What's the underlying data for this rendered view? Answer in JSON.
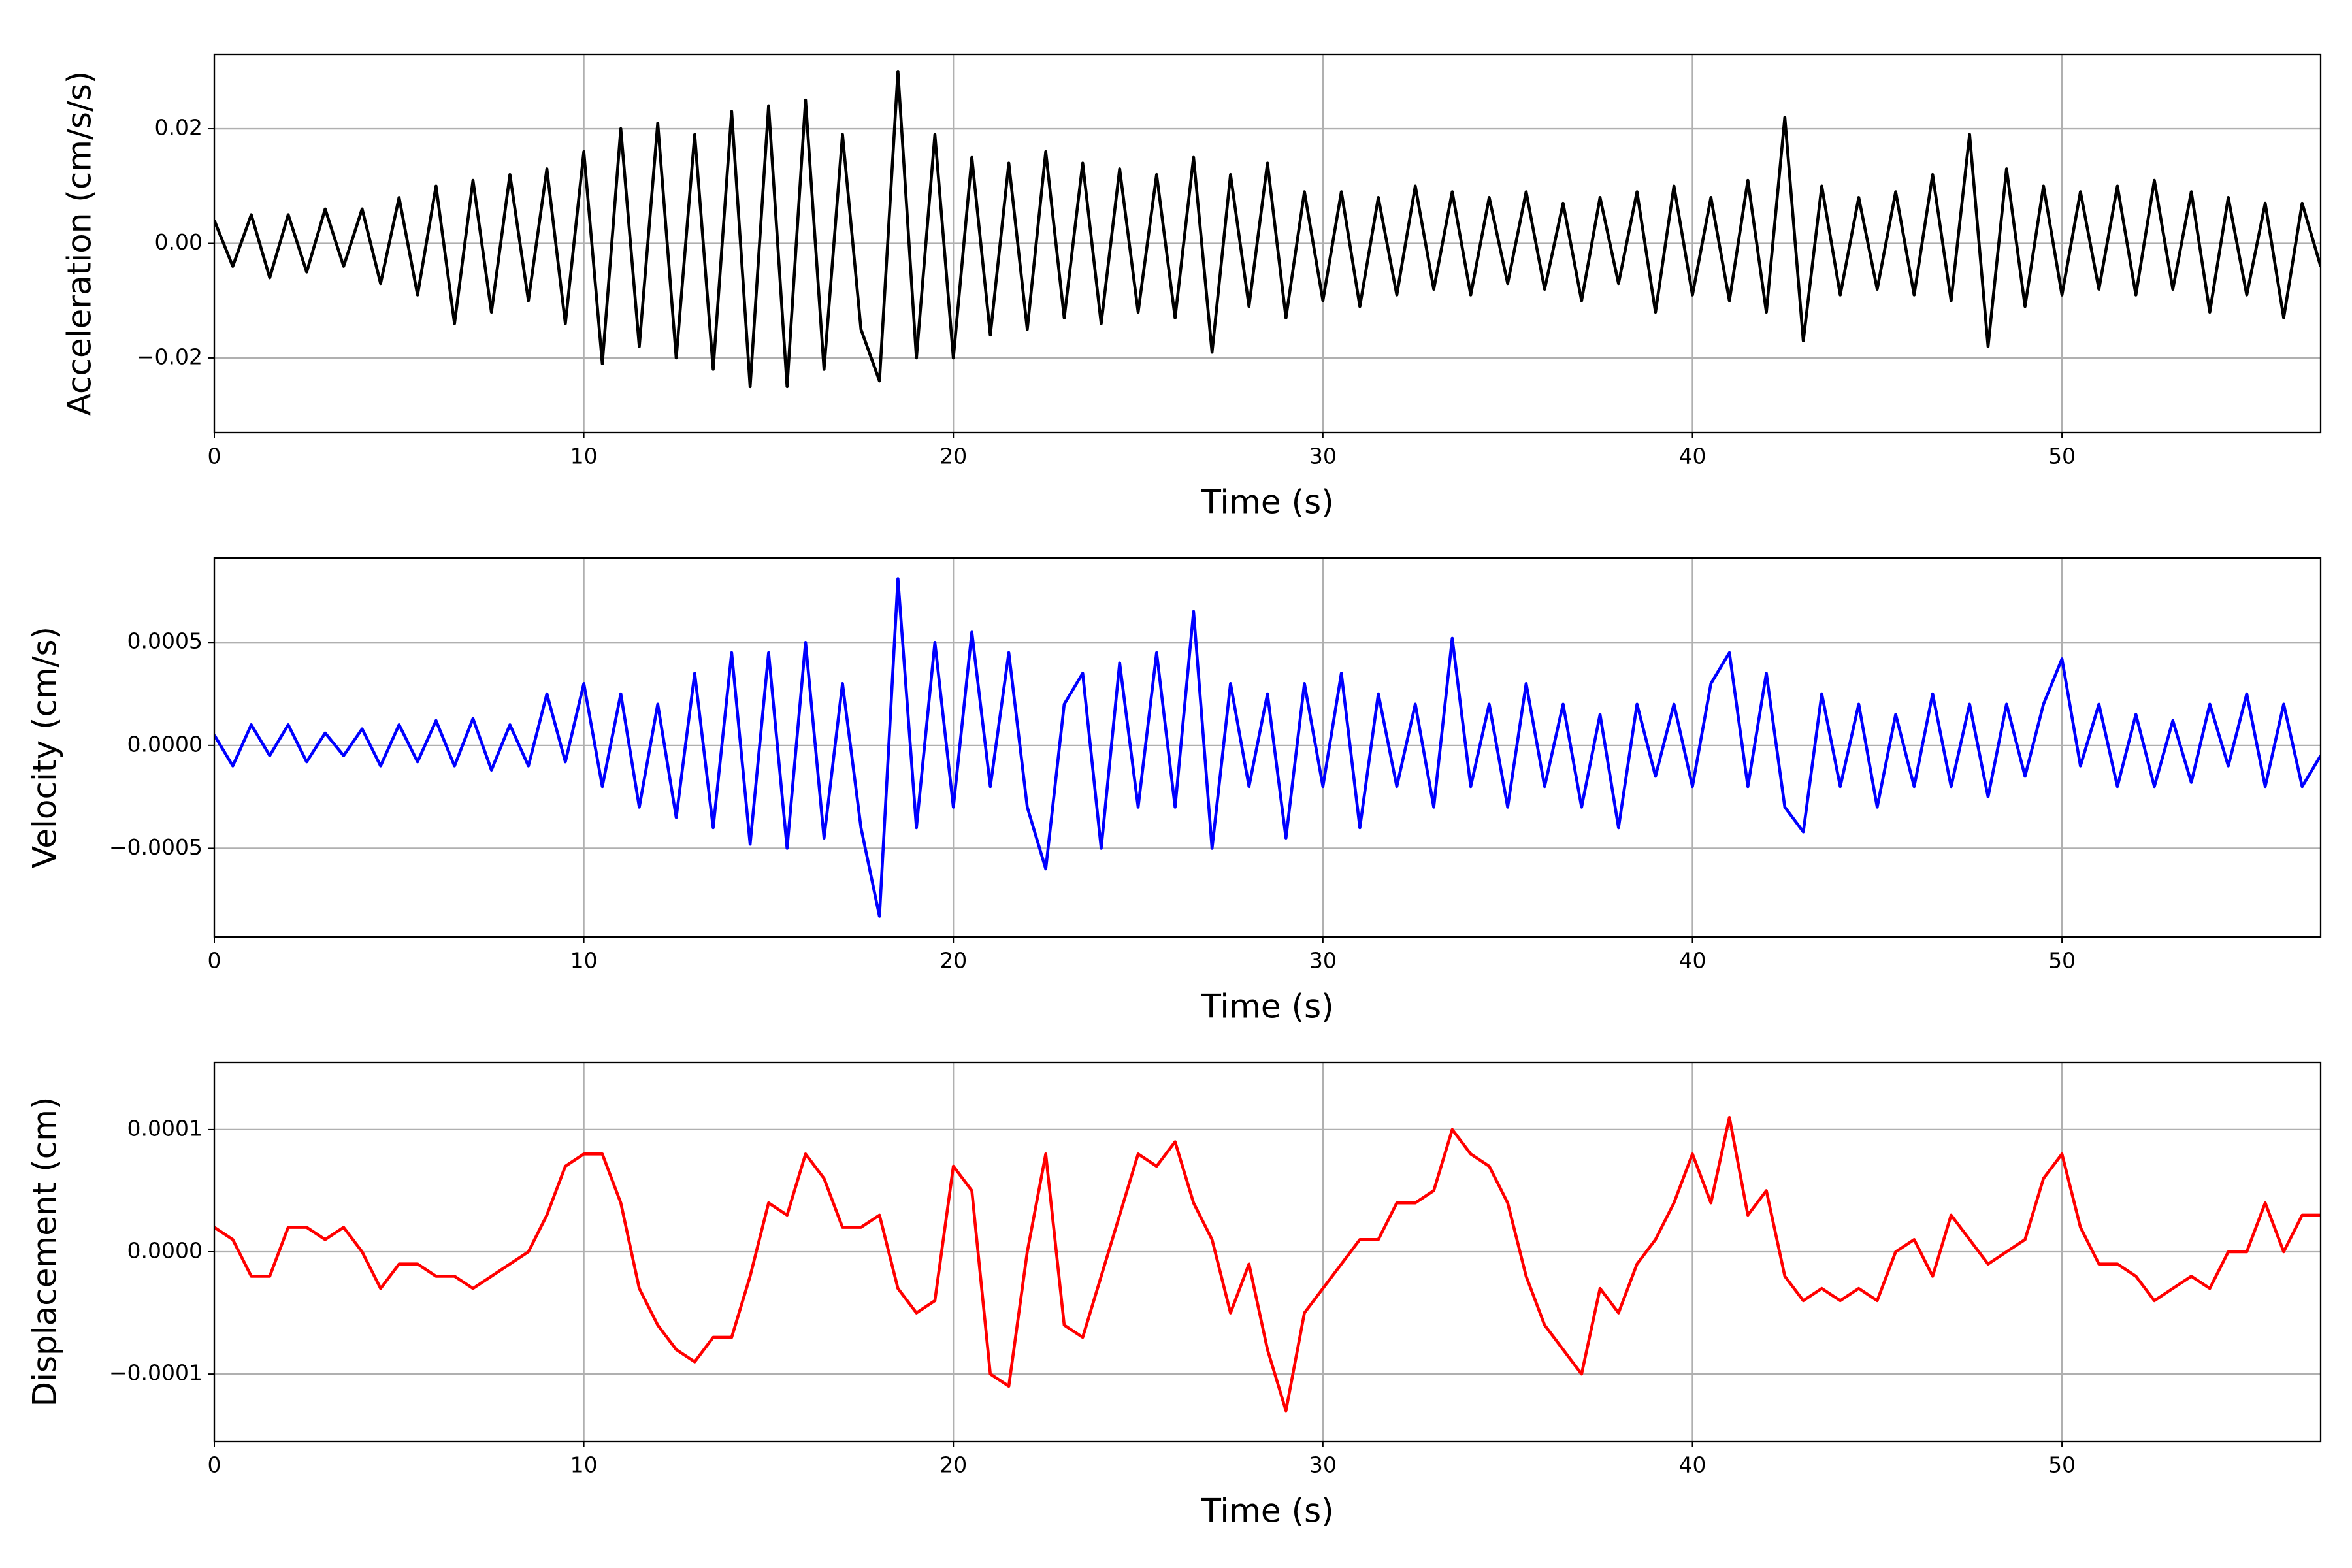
{
  "chart_data": [
    {
      "type": "line",
      "xlabel": "Time (s)",
      "ylabel": "Acceleration (cm/s/s)",
      "color": "#000000",
      "grid": true,
      "xlim": [
        0,
        57
      ],
      "xticks": [
        0,
        10,
        20,
        30,
        40,
        50
      ],
      "ylim": [
        -0.033,
        0.033
      ],
      "yticks": [
        {
          "value": -0.02,
          "label": "−0.02"
        },
        {
          "value": 0,
          "label": "0.00"
        },
        0.02
      ],
      "x": [
        0,
        0.5,
        1,
        1.5,
        2,
        2.5,
        3,
        3.5,
        4,
        4.5,
        5,
        5.5,
        6,
        6.5,
        7,
        7.5,
        8,
        8.5,
        9,
        9.5,
        10,
        10.5,
        11,
        11.5,
        12,
        12.5,
        13,
        13.5,
        14,
        14.5,
        15,
        15.5,
        16,
        16.5,
        17,
        17.5,
        18,
        18.5,
        19,
        19.5,
        20,
        20.5,
        21,
        21.5,
        22,
        22.5,
        23,
        23.5,
        24,
        24.5,
        25,
        25.5,
        26,
        26.5,
        27,
        27.5,
        28,
        28.5,
        29,
        29.5,
        30,
        30.5,
        31,
        31.5,
        32,
        32.5,
        33,
        33.5,
        34,
        34.5,
        35,
        35.5,
        36,
        36.5,
        37,
        37.5,
        38,
        38.5,
        39,
        39.5,
        40,
        40.5,
        41,
        41.5,
        42,
        42.5,
        43,
        43.5,
        44,
        44.5,
        45,
        45.5,
        46,
        46.5,
        47,
        47.5,
        48,
        48.5,
        49,
        49.5,
        50,
        50.5,
        51,
        51.5,
        52,
        52.5,
        53,
        53.5,
        54,
        54.5,
        55,
        55.5,
        56,
        56.5,
        57
      ],
      "values": [
        0.004,
        -0.004,
        0.005,
        -0.006,
        0.005,
        -0.005,
        0.006,
        -0.004,
        0.006,
        -0.007,
        0.008,
        -0.009,
        0.01,
        -0.014,
        0.011,
        -0.012,
        0.012,
        -0.01,
        0.013,
        -0.014,
        0.016,
        -0.021,
        0.02,
        -0.018,
        0.021,
        -0.02,
        0.019,
        -0.022,
        0.023,
        -0.025,
        0.024,
        -0.025,
        0.025,
        -0.022,
        0.019,
        -0.015,
        -0.024,
        0.03,
        -0.02,
        0.019,
        -0.02,
        0.015,
        -0.016,
        0.014,
        -0.015,
        0.016,
        -0.013,
        0.014,
        -0.014,
        0.013,
        -0.012,
        0.012,
        -0.013,
        0.015,
        -0.019,
        0.012,
        -0.011,
        0.014,
        -0.013,
        0.009,
        -0.01,
        0.009,
        -0.011,
        0.008,
        -0.009,
        0.01,
        -0.008,
        0.009,
        -0.009,
        0.008,
        -0.007,
        0.009,
        -0.008,
        0.007,
        -0.01,
        0.008,
        -0.007,
        0.009,
        -0.012,
        0.01,
        -0.009,
        0.008,
        -0.01,
        0.011,
        -0.012,
        0.022,
        -0.017,
        0.01,
        -0.009,
        0.008,
        -0.008,
        0.009,
        -0.009,
        0.012,
        -0.01,
        0.019,
        -0.018,
        0.013,
        -0.011,
        0.01,
        -0.009,
        0.009,
        -0.008,
        0.01,
        -0.009,
        0.011,
        -0.008,
        0.009,
        -0.012,
        0.008,
        -0.009,
        0.007,
        -0.013,
        0.007,
        -0.004
      ]
    },
    {
      "type": "line",
      "xlabel": "Time (s)",
      "ylabel": "Velocity (cm/s)",
      "color": "#0000ff",
      "grid": true,
      "xlim": [
        0,
        57
      ],
      "xticks": [
        0,
        10,
        20,
        30,
        40,
        50
      ],
      "ylim": [
        -0.00093,
        0.00091
      ],
      "yticks": [
        {
          "value": -0.0005,
          "label": "−0.0005"
        },
        {
          "value": 0,
          "label": "0.0000"
        },
        0.0005
      ],
      "x": [
        0,
        0.5,
        1,
        1.5,
        2,
        2.5,
        3,
        3.5,
        4,
        4.5,
        5,
        5.5,
        6,
        6.5,
        7,
        7.5,
        8,
        8.5,
        9,
        9.5,
        10,
        10.5,
        11,
        11.5,
        12,
        12.5,
        13,
        13.5,
        14,
        14.5,
        15,
        15.5,
        16,
        16.5,
        17,
        17.5,
        18,
        18.5,
        19,
        19.5,
        20,
        20.5,
        21,
        21.5,
        22,
        22.5,
        23,
        23.5,
        24,
        24.5,
        25,
        25.5,
        26,
        26.5,
        27,
        27.5,
        28,
        28.5,
        29,
        29.5,
        30,
        30.5,
        31,
        31.5,
        32,
        32.5,
        33,
        33.5,
        34,
        34.5,
        35,
        35.5,
        36,
        36.5,
        37,
        37.5,
        38,
        38.5,
        39,
        39.5,
        40,
        40.5,
        41,
        41.5,
        42,
        42.5,
        43,
        43.5,
        44,
        44.5,
        45,
        45.5,
        46,
        46.5,
        47,
        47.5,
        48,
        48.5,
        49,
        49.5,
        50,
        50.5,
        51,
        51.5,
        52,
        52.5,
        53,
        53.5,
        54,
        54.5,
        55,
        55.5,
        56,
        56.5,
        57
      ],
      "values": [
        5e-05,
        -0.0001,
        0.0001,
        -5e-05,
        0.0001,
        -8e-05,
        6e-05,
        -5e-05,
        8e-05,
        -0.0001,
        0.0001,
        -8e-05,
        0.00012,
        -0.0001,
        0.00013,
        -0.00012,
        0.0001,
        -0.0001,
        0.00025,
        -8e-05,
        0.0003,
        -0.0002,
        0.00025,
        -0.0003,
        0.0002,
        -0.00035,
        0.00035,
        -0.0004,
        0.00045,
        -0.00048,
        0.00045,
        -0.0005,
        0.0005,
        -0.00045,
        0.0003,
        -0.0004,
        -0.00083,
        0.00081,
        -0.0004,
        0.0005,
        -0.0003,
        0.00055,
        -0.0002,
        0.00045,
        -0.0003,
        -0.0006,
        0.0002,
        0.00035,
        -0.0005,
        0.0004,
        -0.0003,
        0.00045,
        -0.0003,
        0.00065,
        -0.0005,
        0.0003,
        -0.0002,
        0.00025,
        -0.00045,
        0.0003,
        -0.0002,
        0.00035,
        -0.0004,
        0.00025,
        -0.0002,
        0.0002,
        -0.0003,
        0.00052,
        -0.0002,
        0.0002,
        -0.0003,
        0.0003,
        -0.0002,
        0.0002,
        -0.0003,
        0.00015,
        -0.0004,
        0.0002,
        -0.00015,
        0.0002,
        -0.0002,
        0.0003,
        0.00045,
        -0.0002,
        0.00035,
        -0.0003,
        -0.00042,
        0.00025,
        -0.0002,
        0.0002,
        -0.0003,
        0.00015,
        -0.0002,
        0.00025,
        -0.0002,
        0.0002,
        -0.00025,
        0.0002,
        -0.00015,
        0.0002,
        0.00042,
        -0.0001,
        0.0002,
        -0.0002,
        0.00015,
        -0.0002,
        0.00012,
        -0.00018,
        0.0002,
        -0.0001,
        0.00025,
        -0.0002,
        0.0002,
        -0.0002,
        -5e-05
      ]
    },
    {
      "type": "line",
      "xlabel": "Time (s)",
      "ylabel": "Displacement (cm)",
      "color": "#ff0000",
      "grid": true,
      "xlim": [
        0,
        57
      ],
      "xticks": [
        0,
        10,
        20,
        30,
        40,
        50
      ],
      "ylim": [
        -0.000155,
        0.000155
      ],
      "yticks": [
        {
          "value": -0.0001,
          "label": "−0.0001"
        },
        {
          "value": 0,
          "label": "0.0000"
        },
        0.0001
      ],
      "x": [
        0,
        0.5,
        1,
        1.5,
        2,
        2.5,
        3,
        3.5,
        4,
        4.5,
        5,
        5.5,
        6,
        6.5,
        7,
        7.5,
        8,
        8.5,
        9,
        9.5,
        10,
        10.5,
        11,
        11.5,
        12,
        12.5,
        13,
        13.5,
        14,
        14.5,
        15,
        15.5,
        16,
        16.5,
        17,
        17.5,
        18,
        18.5,
        19,
        19.5,
        20,
        20.5,
        21,
        21.5,
        22,
        22.5,
        23,
        23.5,
        24,
        24.5,
        25,
        25.5,
        26,
        26.5,
        27,
        27.5,
        28,
        28.5,
        29,
        29.5,
        30,
        30.5,
        31,
        31.5,
        32,
        32.5,
        33,
        33.5,
        34,
        34.5,
        35,
        35.5,
        36,
        36.5,
        37,
        37.5,
        38,
        38.5,
        39,
        39.5,
        40,
        40.5,
        41,
        41.5,
        42,
        42.5,
        43,
        43.5,
        44,
        44.5,
        45,
        45.5,
        46,
        46.5,
        47,
        47.5,
        48,
        48.5,
        49,
        49.5,
        50,
        50.5,
        51,
        51.5,
        52,
        52.5,
        53,
        53.5,
        54,
        54.5,
        55,
        55.5,
        56,
        56.5,
        57
      ],
      "values": [
        2e-05,
        1e-05,
        -2e-05,
        -2e-05,
        2e-05,
        2e-05,
        1e-05,
        2e-05,
        0,
        -3e-05,
        -1e-05,
        -1e-05,
        -2e-05,
        -2e-05,
        -3e-05,
        -2e-05,
        -1e-05,
        0,
        3e-05,
        7e-05,
        8e-05,
        8e-05,
        4e-05,
        -3e-05,
        -6e-05,
        -8e-05,
        -9e-05,
        -7e-05,
        -7e-05,
        -2e-05,
        4e-05,
        3e-05,
        8e-05,
        6e-05,
        2e-05,
        2e-05,
        3e-05,
        -3e-05,
        -5e-05,
        -4e-05,
        7e-05,
        5e-05,
        -0.0001,
        -0.00011,
        0,
        8e-05,
        -6e-05,
        -7e-05,
        -2e-05,
        3e-05,
        8e-05,
        7e-05,
        9e-05,
        4e-05,
        1e-05,
        -5e-05,
        -1e-05,
        -8e-05,
        -0.00013,
        -5e-05,
        -3e-05,
        -1e-05,
        1e-05,
        1e-05,
        4e-05,
        4e-05,
        5e-05,
        0.0001,
        8e-05,
        7e-05,
        4e-05,
        -2e-05,
        -6e-05,
        -8e-05,
        -0.0001,
        -3e-05,
        -5e-05,
        -1e-05,
        1e-05,
        4e-05,
        8e-05,
        4e-05,
        0.00011,
        3e-05,
        5e-05,
        -2e-05,
        -4e-05,
        -3e-05,
        -4e-05,
        -3e-05,
        -4e-05,
        0,
        1e-05,
        -2e-05,
        3e-05,
        1e-05,
        -1e-05,
        0,
        1e-05,
        6e-05,
        8e-05,
        2e-05,
        -1e-05,
        -1e-05,
        -2e-05,
        -4e-05,
        -3e-05,
        -2e-05,
        -3e-05,
        0,
        0,
        4e-05,
        0,
        3e-05,
        3e-05
      ]
    }
  ]
}
